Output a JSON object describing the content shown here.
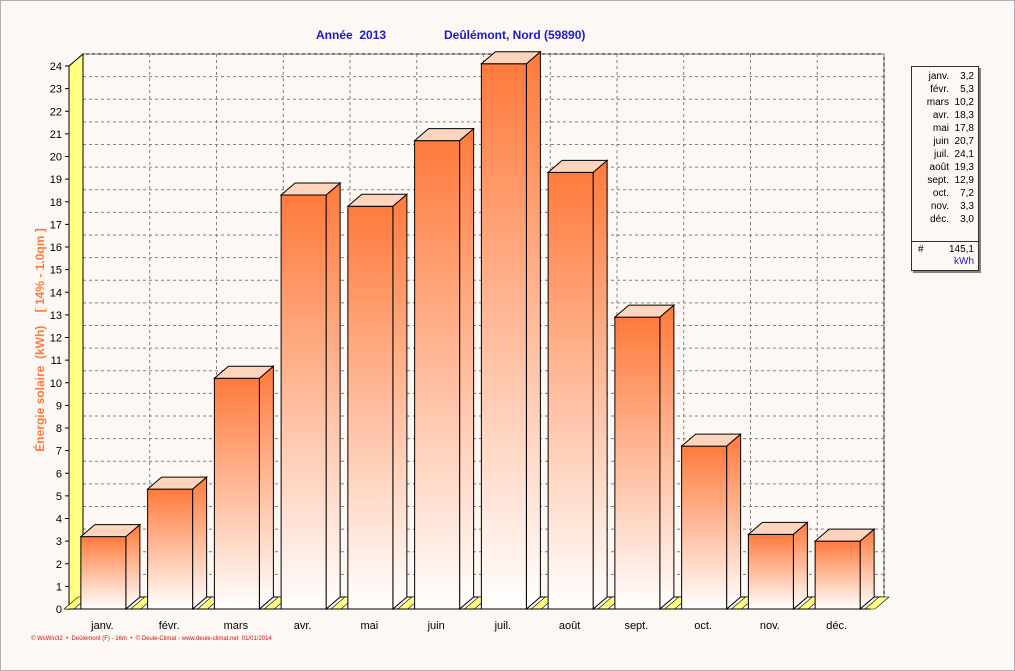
{
  "header": {
    "year_label": "Année  2013",
    "location_label": "Deûlémont, Nord (59890)"
  },
  "footer_text": "© WsWin32  •  Deûlémont (F) - 16m  •  © Deule-Climat - www.deule-climat.net  01/01/2014",
  "colors": {
    "bar_top": "#ff7a3c",
    "bar_bottom": "#ffffff",
    "axis_wall": "#ffff80",
    "title": "#1a1acc",
    "ylabel": "#ff7a3c",
    "footer": "#cc1111"
  },
  "legend": {
    "rows": [
      {
        "month": "janv.",
        "value": "3,2"
      },
      {
        "month": "févr.",
        "value": "5,3"
      },
      {
        "month": "mars",
        "value": "10,2"
      },
      {
        "month": "avr.",
        "value": "18,3"
      },
      {
        "month": "mai",
        "value": "17,8"
      },
      {
        "month": "juin",
        "value": "20,7"
      },
      {
        "month": "juil.",
        "value": "24,1"
      },
      {
        "month": "août",
        "value": "19,3"
      },
      {
        "month": "sept.",
        "value": "12,9"
      },
      {
        "month": "oct.",
        "value": "7,2"
      },
      {
        "month": "nov.",
        "value": "3,3"
      },
      {
        "month": "déc.",
        "value": "3,0"
      }
    ],
    "total_symbol": "#",
    "total_value": "145,1",
    "total_unit": "kWh"
  },
  "chart_data": {
    "type": "bar",
    "title": "Année  2013     Deûlémont, Nord (59890)",
    "xlabel": "",
    "ylabel": "Énergie solaire  (kWh)    [ 14% - 1.0qm ]",
    "categories": [
      "janv.",
      "févr.",
      "mars",
      "avr.",
      "mai",
      "juin",
      "juil.",
      "août",
      "sept.",
      "oct.",
      "nov.",
      "déc."
    ],
    "series": [
      {
        "values": [
          3.2,
          5.3,
          10.2,
          18.3,
          17.8,
          20.7,
          24.1,
          19.3,
          12.9,
          7.2,
          3.3,
          3.0
        ]
      }
    ],
    "ylim": [
      0,
      24
    ],
    "yticks": [
      0,
      1,
      2,
      3,
      4,
      5,
      6,
      7,
      8,
      9,
      10,
      11,
      12,
      13,
      14,
      15,
      16,
      17,
      18,
      19,
      20,
      21,
      22,
      23,
      24
    ],
    "grid": true,
    "legend_position": "right"
  }
}
